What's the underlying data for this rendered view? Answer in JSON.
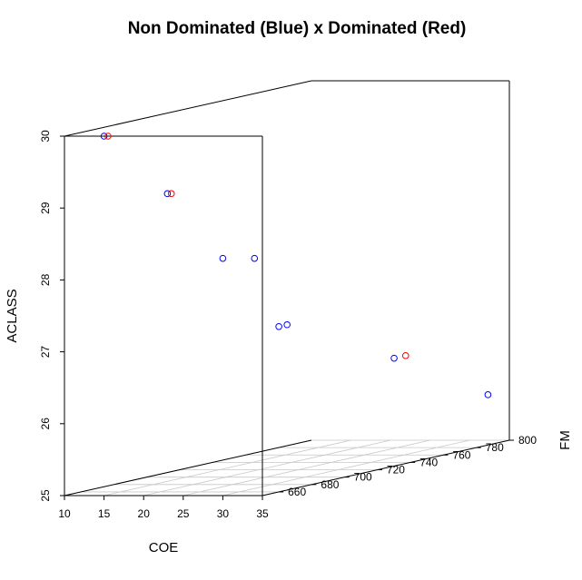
{
  "chart_data": {
    "type": "scatter",
    "title": "Non Dominated (Blue) x Dominated (Red)",
    "xlabel": "COE",
    "ylabel": "FM",
    "zlabel": "ACLASS",
    "xlim": [
      10,
      35
    ],
    "ylim": [
      650,
      800
    ],
    "zlim": [
      25,
      30
    ],
    "x_ticks": [
      "10",
      "15",
      "20",
      "25",
      "30",
      "35"
    ],
    "y_ticks": [
      "660",
      "680",
      "700",
      "720",
      "740",
      "760",
      "780",
      "800"
    ],
    "z_ticks": [
      "25",
      "26",
      "27",
      "28",
      "29",
      "30"
    ],
    "grid": true,
    "colors": {
      "non_dominated": "#0000ff",
      "dominated": "#ff0000"
    },
    "series": [
      {
        "name": "Non Dominated",
        "color": "#0000ff",
        "points": [
          {
            "x": 15.0,
            "y": 650,
            "z": 30.0
          },
          {
            "x": 23.0,
            "y": 650,
            "z": 29.2
          },
          {
            "x": 30.0,
            "y": 650,
            "z": 28.3
          },
          {
            "x": 34.0,
            "y": 650,
            "z": 28.3
          },
          {
            "x": 35.0,
            "y": 660,
            "z": 27.3
          },
          {
            "x": 35.0,
            "y": 665,
            "z": 27.3
          },
          {
            "x": 35.0,
            "y": 730,
            "z": 26.5
          },
          {
            "x": 35.0,
            "y": 787,
            "z": 25.7
          }
        ]
      },
      {
        "name": "Dominated",
        "color": "#ff0000",
        "points": [
          {
            "x": 15.5,
            "y": 650,
            "z": 30.0
          },
          {
            "x": 23.5,
            "y": 650,
            "z": 29.2
          },
          {
            "x": 35.0,
            "y": 737,
            "z": 26.5
          }
        ]
      }
    ]
  }
}
